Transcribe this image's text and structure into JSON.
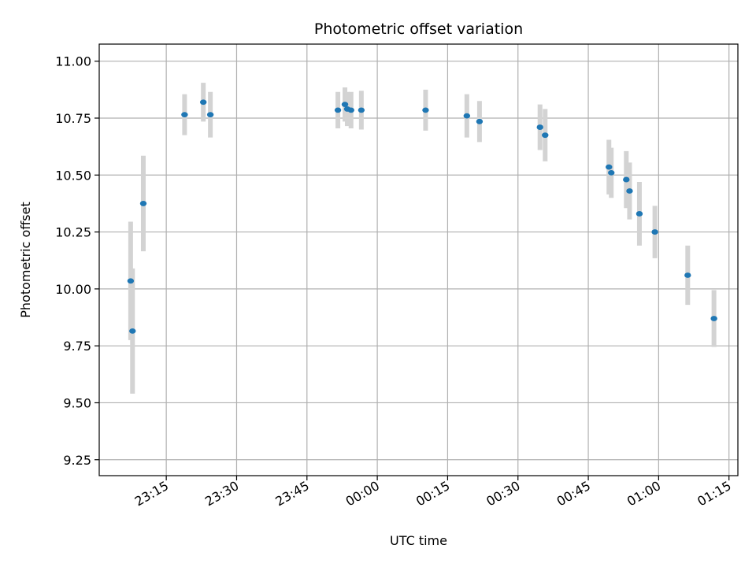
{
  "chart_data": {
    "type": "scatter",
    "title": "Photometric offset variation",
    "xlabel": "UTC time",
    "ylabel": "Photometric offset",
    "x_tick_labels": [
      "23:15",
      "23:30",
      "23:45",
      "00:00",
      "00:15",
      "00:30",
      "00:45",
      "01:00",
      "01:15"
    ],
    "x_tick_minutes": [
      0,
      15,
      30,
      45,
      60,
      75,
      90,
      105,
      120
    ],
    "y_ticks": [
      9.25,
      9.5,
      9.75,
      10.0,
      10.25,
      10.5,
      10.75,
      11.0
    ],
    "y_tick_labels": [
      "9.25",
      "9.50",
      "9.75",
      "10.00",
      "10.25",
      "10.50",
      "10.75",
      "11.00"
    ],
    "xlim_minutes": [
      -14.3,
      121.9
    ],
    "ylim": [
      9.18,
      11.075
    ],
    "grid": true,
    "point_color": "#1f77b4",
    "errorbar_color": "#d3d3d3",
    "points": [
      {
        "t": -7.6,
        "y": 10.035,
        "err": 0.52
      },
      {
        "t": -7.2,
        "y": 9.815,
        "err": 0.55
      },
      {
        "t": -4.9,
        "y": 10.375,
        "err": 0.42
      },
      {
        "t": 3.9,
        "y": 10.765,
        "err": 0.18
      },
      {
        "t": 7.9,
        "y": 10.82,
        "err": 0.17
      },
      {
        "t": 9.4,
        "y": 10.765,
        "err": 0.2
      },
      {
        "t": 36.6,
        "y": 10.785,
        "err": 0.16
      },
      {
        "t": 38.1,
        "y": 10.81,
        "err": 0.15
      },
      {
        "t": 38.6,
        "y": 10.79,
        "err": 0.15
      },
      {
        "t": 39.4,
        "y": 10.785,
        "err": 0.16
      },
      {
        "t": 41.6,
        "y": 10.785,
        "err": 0.17
      },
      {
        "t": 55.3,
        "y": 10.785,
        "err": 0.18
      },
      {
        "t": 64.1,
        "y": 10.76,
        "err": 0.19
      },
      {
        "t": 66.8,
        "y": 10.735,
        "err": 0.18
      },
      {
        "t": 79.7,
        "y": 10.71,
        "err": 0.2
      },
      {
        "t": 80.8,
        "y": 10.675,
        "err": 0.23
      },
      {
        "t": 94.4,
        "y": 10.535,
        "err": 0.24
      },
      {
        "t": 94.9,
        "y": 10.51,
        "err": 0.22
      },
      {
        "t": 98.1,
        "y": 10.48,
        "err": 0.25
      },
      {
        "t": 98.8,
        "y": 10.43,
        "err": 0.25
      },
      {
        "t": 100.9,
        "y": 10.33,
        "err": 0.28
      },
      {
        "t": 104.2,
        "y": 10.25,
        "err": 0.23
      },
      {
        "t": 111.2,
        "y": 10.06,
        "err": 0.26
      },
      {
        "t": 116.8,
        "y": 9.87,
        "err": 0.25
      }
    ]
  }
}
